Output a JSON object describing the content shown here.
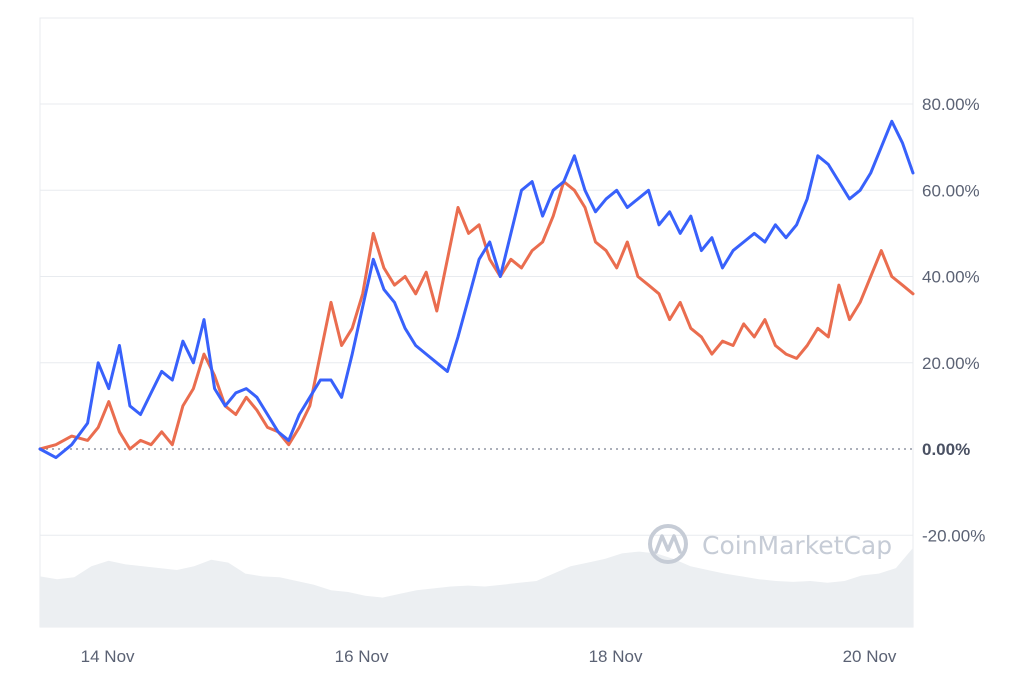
{
  "chart_data": {
    "type": "line",
    "title": "",
    "xlabel": "",
    "ylabel": "",
    "ylim": [
      -40,
      100
    ],
    "y_ticks": [
      80,
      60,
      40,
      20,
      0,
      -20
    ],
    "y_tick_labels": [
      "80.00%",
      "60.00%",
      "40.00%",
      "20.00%",
      "0.00%",
      "-20.00%"
    ],
    "x_range": [
      "2023-11-13T15:00",
      "2023-11-20T12:00"
    ],
    "x_ticks": [
      {
        "t": "2023-11-14T00:00",
        "label": "14 Nov"
      },
      {
        "t": "2023-11-16T00:00",
        "label": "16 Nov"
      },
      {
        "t": "2023-11-18T00:00",
        "label": "18 Nov"
      },
      {
        "t": "2023-11-20T00:00",
        "label": "20 Nov"
      }
    ],
    "baseline": 0,
    "grid": true,
    "series": [
      {
        "color": "#3861fb",
        "points": [
          [
            "2023-11-13T15:00",
            0
          ],
          [
            "2023-11-13T18:00",
            -2
          ],
          [
            "2023-11-13T21:00",
            1
          ],
          [
            "2023-11-14T00:00",
            6
          ],
          [
            "2023-11-14T02:00",
            20
          ],
          [
            "2023-11-14T04:00",
            14
          ],
          [
            "2023-11-14T06:00",
            24
          ],
          [
            "2023-11-14T08:00",
            10
          ],
          [
            "2023-11-14T10:00",
            8
          ],
          [
            "2023-11-14T12:00",
            13
          ],
          [
            "2023-11-14T14:00",
            18
          ],
          [
            "2023-11-14T16:00",
            16
          ],
          [
            "2023-11-14T18:00",
            25
          ],
          [
            "2023-11-14T20:00",
            20
          ],
          [
            "2023-11-14T22:00",
            30
          ],
          [
            "2023-11-15T00:00",
            14
          ],
          [
            "2023-11-15T02:00",
            10
          ],
          [
            "2023-11-15T04:00",
            13
          ],
          [
            "2023-11-15T06:00",
            14
          ],
          [
            "2023-11-15T08:00",
            12
          ],
          [
            "2023-11-15T10:00",
            8
          ],
          [
            "2023-11-15T12:00",
            4
          ],
          [
            "2023-11-15T14:00",
            2
          ],
          [
            "2023-11-15T16:00",
            8
          ],
          [
            "2023-11-15T18:00",
            12
          ],
          [
            "2023-11-15T20:00",
            16
          ],
          [
            "2023-11-15T22:00",
            16
          ],
          [
            "2023-11-16T00:00",
            12
          ],
          [
            "2023-11-16T02:00",
            22
          ],
          [
            "2023-11-16T04:00",
            33
          ],
          [
            "2023-11-16T06:00",
            44
          ],
          [
            "2023-11-16T08:00",
            37
          ],
          [
            "2023-11-16T10:00",
            34
          ],
          [
            "2023-11-16T12:00",
            28
          ],
          [
            "2023-11-16T14:00",
            24
          ],
          [
            "2023-11-16T16:00",
            22
          ],
          [
            "2023-11-16T18:00",
            20
          ],
          [
            "2023-11-16T20:00",
            18
          ],
          [
            "2023-11-16T22:00",
            26
          ],
          [
            "2023-11-17T00:00",
            35
          ],
          [
            "2023-11-17T02:00",
            44
          ],
          [
            "2023-11-17T04:00",
            48
          ],
          [
            "2023-11-17T06:00",
            40
          ],
          [
            "2023-11-17T08:00",
            50
          ],
          [
            "2023-11-17T10:00",
            60
          ],
          [
            "2023-11-17T12:00",
            62
          ],
          [
            "2023-11-17T14:00",
            54
          ],
          [
            "2023-11-17T16:00",
            60
          ],
          [
            "2023-11-17T18:00",
            62
          ],
          [
            "2023-11-17T20:00",
            68
          ],
          [
            "2023-11-17T22:00",
            60
          ],
          [
            "2023-11-18T00:00",
            55
          ],
          [
            "2023-11-18T02:00",
            58
          ],
          [
            "2023-11-18T04:00",
            60
          ],
          [
            "2023-11-18T06:00",
            56
          ],
          [
            "2023-11-18T08:00",
            58
          ],
          [
            "2023-11-18T10:00",
            60
          ],
          [
            "2023-11-18T12:00",
            52
          ],
          [
            "2023-11-18T14:00",
            55
          ],
          [
            "2023-11-18T16:00",
            50
          ],
          [
            "2023-11-18T18:00",
            54
          ],
          [
            "2023-11-18T20:00",
            46
          ],
          [
            "2023-11-18T22:00",
            49
          ],
          [
            "2023-11-19T00:00",
            42
          ],
          [
            "2023-11-19T02:00",
            46
          ],
          [
            "2023-11-19T04:00",
            48
          ],
          [
            "2023-11-19T06:00",
            50
          ],
          [
            "2023-11-19T08:00",
            48
          ],
          [
            "2023-11-19T10:00",
            52
          ],
          [
            "2023-11-19T12:00",
            49
          ],
          [
            "2023-11-19T14:00",
            52
          ],
          [
            "2023-11-19T16:00",
            58
          ],
          [
            "2023-11-19T18:00",
            68
          ],
          [
            "2023-11-19T20:00",
            66
          ],
          [
            "2023-11-19T22:00",
            62
          ],
          [
            "2023-11-20T00:00",
            58
          ],
          [
            "2023-11-20T02:00",
            60
          ],
          [
            "2023-11-20T04:00",
            64
          ],
          [
            "2023-11-20T06:00",
            70
          ],
          [
            "2023-11-20T08:00",
            76
          ],
          [
            "2023-11-20T10:00",
            71
          ],
          [
            "2023-11-20T12:00",
            64
          ]
        ]
      },
      {
        "color": "#ea6d4f",
        "points": [
          [
            "2023-11-13T15:00",
            0
          ],
          [
            "2023-11-13T18:00",
            1
          ],
          [
            "2023-11-13T21:00",
            3
          ],
          [
            "2023-11-14T00:00",
            2
          ],
          [
            "2023-11-14T02:00",
            5
          ],
          [
            "2023-11-14T04:00",
            11
          ],
          [
            "2023-11-14T06:00",
            4
          ],
          [
            "2023-11-14T08:00",
            0
          ],
          [
            "2023-11-14T10:00",
            2
          ],
          [
            "2023-11-14T12:00",
            1
          ],
          [
            "2023-11-14T14:00",
            4
          ],
          [
            "2023-11-14T16:00",
            1
          ],
          [
            "2023-11-14T18:00",
            10
          ],
          [
            "2023-11-14T20:00",
            14
          ],
          [
            "2023-11-14T22:00",
            22
          ],
          [
            "2023-11-15T00:00",
            17
          ],
          [
            "2023-11-15T02:00",
            10
          ],
          [
            "2023-11-15T04:00",
            8
          ],
          [
            "2023-11-15T06:00",
            12
          ],
          [
            "2023-11-15T08:00",
            9
          ],
          [
            "2023-11-15T10:00",
            5
          ],
          [
            "2023-11-15T12:00",
            4
          ],
          [
            "2023-11-15T14:00",
            1
          ],
          [
            "2023-11-15T16:00",
            5
          ],
          [
            "2023-11-15T18:00",
            10
          ],
          [
            "2023-11-15T20:00",
            22
          ],
          [
            "2023-11-15T22:00",
            34
          ],
          [
            "2023-11-16T00:00",
            24
          ],
          [
            "2023-11-16T02:00",
            28
          ],
          [
            "2023-11-16T04:00",
            36
          ],
          [
            "2023-11-16T06:00",
            50
          ],
          [
            "2023-11-16T08:00",
            42
          ],
          [
            "2023-11-16T10:00",
            38
          ],
          [
            "2023-11-16T12:00",
            40
          ],
          [
            "2023-11-16T14:00",
            36
          ],
          [
            "2023-11-16T16:00",
            41
          ],
          [
            "2023-11-16T18:00",
            32
          ],
          [
            "2023-11-16T20:00",
            44
          ],
          [
            "2023-11-16T22:00",
            56
          ],
          [
            "2023-11-17T00:00",
            50
          ],
          [
            "2023-11-17T02:00",
            52
          ],
          [
            "2023-11-17T04:00",
            44
          ],
          [
            "2023-11-17T06:00",
            40
          ],
          [
            "2023-11-17T08:00",
            44
          ],
          [
            "2023-11-17T10:00",
            42
          ],
          [
            "2023-11-17T12:00",
            46
          ],
          [
            "2023-11-17T14:00",
            48
          ],
          [
            "2023-11-17T16:00",
            54
          ],
          [
            "2023-11-17T18:00",
            62
          ],
          [
            "2023-11-17T20:00",
            60
          ],
          [
            "2023-11-17T22:00",
            56
          ],
          [
            "2023-11-18T00:00",
            48
          ],
          [
            "2023-11-18T02:00",
            46
          ],
          [
            "2023-11-18T04:00",
            42
          ],
          [
            "2023-11-18T06:00",
            48
          ],
          [
            "2023-11-18T08:00",
            40
          ],
          [
            "2023-11-18T10:00",
            38
          ],
          [
            "2023-11-18T12:00",
            36
          ],
          [
            "2023-11-18T14:00",
            30
          ],
          [
            "2023-11-18T16:00",
            34
          ],
          [
            "2023-11-18T18:00",
            28
          ],
          [
            "2023-11-18T20:00",
            26
          ],
          [
            "2023-11-18T22:00",
            22
          ],
          [
            "2023-11-19T00:00",
            25
          ],
          [
            "2023-11-19T02:00",
            24
          ],
          [
            "2023-11-19T04:00",
            29
          ],
          [
            "2023-11-19T06:00",
            26
          ],
          [
            "2023-11-19T08:00",
            30
          ],
          [
            "2023-11-19T10:00",
            24
          ],
          [
            "2023-11-19T12:00",
            22
          ],
          [
            "2023-11-19T14:00",
            21
          ],
          [
            "2023-11-19T16:00",
            24
          ],
          [
            "2023-11-19T18:00",
            28
          ],
          [
            "2023-11-19T20:00",
            26
          ],
          [
            "2023-11-19T22:00",
            38
          ],
          [
            "2023-11-20T00:00",
            30
          ],
          [
            "2023-11-20T02:00",
            34
          ],
          [
            "2023-11-20T04:00",
            40
          ],
          [
            "2023-11-20T06:00",
            46
          ],
          [
            "2023-11-20T08:00",
            40
          ],
          [
            "2023-11-20T10:00",
            38
          ],
          [
            "2023-11-20T12:00",
            36
          ]
        ]
      }
    ],
    "volume": {
      "color": "#eceff2",
      "values": [
        0.55,
        0.52,
        0.54,
        0.66,
        0.72,
        0.68,
        0.66,
        0.64,
        0.62,
        0.66,
        0.73,
        0.7,
        0.58,
        0.55,
        0.54,
        0.5,
        0.46,
        0.4,
        0.38,
        0.34,
        0.32,
        0.36,
        0.4,
        0.42,
        0.44,
        0.45,
        0.44,
        0.46,
        0.48,
        0.5,
        0.58,
        0.66,
        0.7,
        0.74,
        0.8,
        0.82,
        0.8,
        0.74,
        0.66,
        0.62,
        0.58,
        0.55,
        0.52,
        0.5,
        0.49,
        0.5,
        0.48,
        0.5,
        0.56,
        0.58,
        0.64,
        0.86
      ]
    }
  },
  "watermark": {
    "text": "CoinMarketCap",
    "icon": "coinmarketcap-logo-icon"
  },
  "colors": {
    "grid": "#e8ebef",
    "zero_line": "#7a8190",
    "axis_text": "#5b6274"
  }
}
